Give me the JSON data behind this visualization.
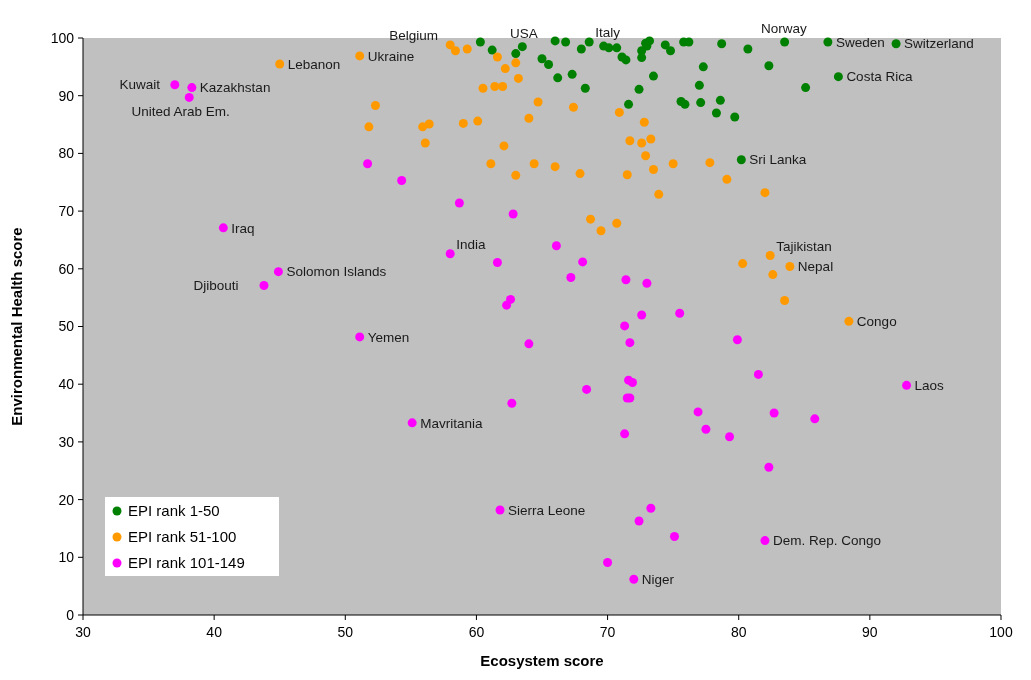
{
  "chart_data": {
    "type": "scatter",
    "xlabel": "Ecosystem score",
    "ylabel": "Environmental Health score",
    "xlim": [
      30,
      100
    ],
    "ylim": [
      0,
      100
    ],
    "xticks": [
      30,
      40,
      50,
      60,
      70,
      80,
      90,
      100
    ],
    "yticks": [
      0,
      10,
      20,
      30,
      40,
      50,
      60,
      70,
      80,
      90,
      100
    ],
    "grid": false,
    "legend": "bottom left",
    "marker": "circle",
    "series": [
      {
        "name": "EPI rank 1-50",
        "color": "#008000",
        "x": [
          60.3,
          61.2,
          63.0,
          63.5,
          65.0,
          65.5,
          66.0,
          66.8,
          68.0,
          68.6,
          69.7,
          70.1,
          70.7,
          71.1,
          71.4,
          72.6,
          72.9,
          73.2,
          73.0,
          72.6,
          74.4,
          74.8,
          75.8,
          76.2,
          78.7,
          80.7,
          83.5,
          86.8,
          92.0,
          77.3,
          82.3,
          66.2,
          67.3,
          73.5,
          68.3,
          72.4,
          77.0,
          87.6,
          85.1,
          71.6,
          75.6,
          75.9,
          77.1,
          78.6,
          78.3,
          79.7,
          80.2
        ],
        "values": [
          99.3,
          97.9,
          97.3,
          98.5,
          96.4,
          95.4,
          99.5,
          99.3,
          98.1,
          99.3,
          98.6,
          98.3,
          98.3,
          96.7,
          96.2,
          97.8,
          99.1,
          99.5,
          98.6,
          96.6,
          98.8,
          97.8,
          99.3,
          99.3,
          99.0,
          98.1,
          99.3,
          99.3,
          99.0,
          95.0,
          95.2,
          93.1,
          93.7,
          93.4,
          91.3,
          91.1,
          91.8,
          93.3,
          91.4,
          88.5,
          89.0,
          88.5,
          88.8,
          89.2,
          87.0,
          86.3,
          78.9
        ]
      },
      {
        "name": "EPI rank 51-100",
        "color": "#ff9900",
        "x": [
          45.0,
          51.1,
          58.0,
          58.4,
          59.3,
          61.6,
          62.2,
          63.0,
          63.2,
          60.5,
          61.4,
          62.0,
          52.3,
          51.8,
          55.9,
          56.4,
          59.0,
          60.1,
          64.7,
          64.0,
          56.1,
          62.1,
          61.1,
          64.4,
          63.0,
          67.4,
          70.9,
          72.8,
          71.7,
          72.6,
          73.3,
          72.9,
          66.0,
          67.9,
          71.5,
          73.5,
          75.0,
          77.8,
          79.1,
          82.0,
          73.9,
          68.7,
          69.5,
          70.7,
          80.3,
          82.4,
          82.6,
          83.9,
          83.5,
          88.4
        ],
        "values": [
          95.5,
          96.9,
          98.8,
          97.8,
          98.1,
          96.7,
          94.7,
          95.7,
          93.0,
          91.3,
          91.6,
          91.6,
          88.3,
          84.6,
          84.6,
          85.1,
          85.2,
          85.6,
          88.9,
          86.1,
          81.8,
          81.3,
          78.2,
          78.2,
          76.2,
          88.0,
          87.1,
          85.4,
          82.2,
          81.8,
          82.5,
          79.6,
          77.7,
          76.5,
          76.3,
          77.2,
          78.2,
          78.4,
          75.5,
          73.2,
          72.9,
          68.6,
          66.6,
          67.9,
          60.9,
          62.3,
          59.0,
          60.4,
          54.5,
          50.9
        ]
      },
      {
        "name": "EPI rank 101-149",
        "color": "#ff00ff",
        "x": [
          37.0,
          38.3,
          38.1,
          51.7,
          54.3,
          58.7,
          62.8,
          40.7,
          44.9,
          43.8,
          58.0,
          61.6,
          66.1,
          62.6,
          62.3,
          51.1,
          64.0,
          62.7,
          55.1,
          68.1,
          67.2,
          71.4,
          73.0,
          72.6,
          75.5,
          71.3,
          71.7,
          79.9,
          81.5,
          68.4,
          71.6,
          71.9,
          71.5,
          71.7,
          92.8,
          76.9,
          82.7,
          85.8,
          77.5,
          79.3,
          71.3,
          82.3,
          73.3,
          72.4,
          75.1,
          82.0,
          70.0,
          72.0,
          61.8
        ],
        "values": [
          91.9,
          91.4,
          89.7,
          78.2,
          75.3,
          71.4,
          69.5,
          67.1,
          59.5,
          57.1,
          62.6,
          61.1,
          64.0,
          54.7,
          53.7,
          48.2,
          47.0,
          36.7,
          33.3,
          61.2,
          58.5,
          58.1,
          57.5,
          52.0,
          52.3,
          50.1,
          47.2,
          47.7,
          41.7,
          39.1,
          40.7,
          40.3,
          37.6,
          37.6,
          39.8,
          35.2,
          35.0,
          34.0,
          32.2,
          30.9,
          31.4,
          25.6,
          18.5,
          16.3,
          13.6,
          12.9,
          9.1,
          6.2,
          18.2
        ]
      }
    ],
    "annotations": [
      {
        "text": "Kuwait",
        "x": 37.0,
        "y": 91.9
      },
      {
        "text": "Kazakhstan",
        "x": 38.3,
        "y": 91.4
      },
      {
        "text": "United Arab Em.",
        "x": 38.1,
        "y": 89.7
      },
      {
        "text": "Lebanon",
        "x": 45.0,
        "y": 95.5
      },
      {
        "text": "Ukraine",
        "x": 51.1,
        "y": 96.9
      },
      {
        "text": "Belgium",
        "x": 58.0,
        "y": 98.8
      },
      {
        "text": "USA",
        "x": 63.5,
        "y": 98.5
      },
      {
        "text": "Italy",
        "x": 68.6,
        "y": 99.3
      },
      {
        "text": "Norway",
        "x": 83.5,
        "y": 99.3
      },
      {
        "text": "Sweden",
        "x": 86.8,
        "y": 99.3
      },
      {
        "text": "Switzerland",
        "x": 92.0,
        "y": 99.0
      },
      {
        "text": "Costa Rica",
        "x": 87.6,
        "y": 93.3
      },
      {
        "text": "Sri Lanka",
        "x": 80.2,
        "y": 78.9
      },
      {
        "text": "Iraq",
        "x": 40.7,
        "y": 67.1
      },
      {
        "text": "Solomon Islands",
        "x": 44.9,
        "y": 59.5
      },
      {
        "text": "India",
        "x": 58.0,
        "y": 62.6
      },
      {
        "text": "Djibouti",
        "x": 43.8,
        "y": 57.1
      },
      {
        "text": "Tajikistan",
        "x": 82.4,
        "y": 62.3
      },
      {
        "text": "Nepal",
        "x": 83.9,
        "y": 60.4
      },
      {
        "text": "Congo",
        "x": 88.4,
        "y": 50.9
      },
      {
        "text": "Yemen",
        "x": 51.1,
        "y": 48.2
      },
      {
        "text": "Laos",
        "x": 92.8,
        "y": 39.8
      },
      {
        "text": "Mavritania",
        "x": 55.1,
        "y": 33.3
      },
      {
        "text": "Sierra Leone",
        "x": 61.8,
        "y": 18.2
      },
      {
        "text": "Dem. Rep. Congo",
        "x": 82.0,
        "y": 12.9
      },
      {
        "text": "Niger",
        "x": 72.0,
        "y": 6.2
      }
    ]
  }
}
